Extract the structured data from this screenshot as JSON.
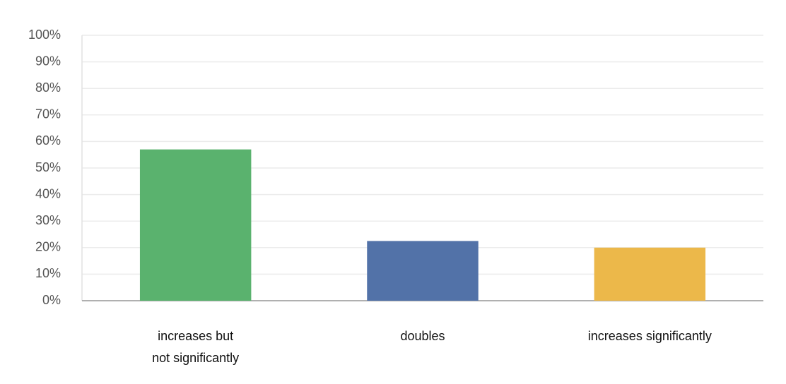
{
  "chart_data": {
    "type": "bar",
    "categories": [
      "increases but\nnot significantly",
      "doubles",
      "increases significantly"
    ],
    "values": [
      57,
      22.5,
      20
    ],
    "colors": [
      "#5ab26e",
      "#5272a8",
      "#ecb84a"
    ],
    "ylim": [
      0,
      100
    ],
    "yticks": [
      {
        "value": 0,
        "label": "0%"
      },
      {
        "value": 10,
        "label": "10%"
      },
      {
        "value": 20,
        "label": "20%"
      },
      {
        "value": 30,
        "label": "30%"
      },
      {
        "value": 40,
        "label": "40%"
      },
      {
        "value": 50,
        "label": "50%"
      },
      {
        "value": 60,
        "label": "60%"
      },
      {
        "value": 70,
        "label": "70%"
      },
      {
        "value": 80,
        "label": "80%"
      },
      {
        "value": 90,
        "label": "90%"
      },
      {
        "value": 100,
        "label": "100%"
      }
    ],
    "grid": true
  }
}
